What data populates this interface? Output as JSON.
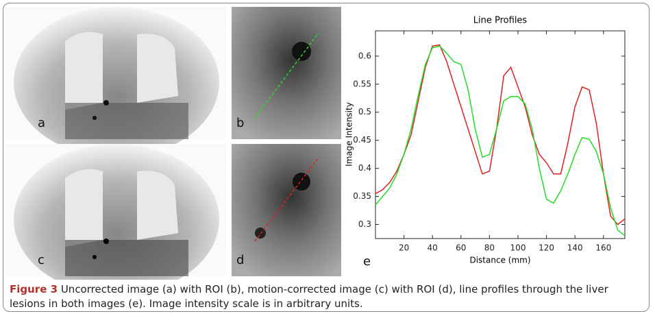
{
  "figure": {
    "panel_labels": [
      "a",
      "b",
      "c",
      "d",
      "e"
    ],
    "caption_label": "Figure 3",
    "caption_text": "Uncorrected image (a) with ROI (b), motion-corrected image (c) with ROI (d), line profiles through the liver lesions in both images (e). Image intensity scale is in arbitrary units."
  },
  "chart_data": {
    "type": "line",
    "title": "Line Profiles",
    "x_label": "Distance (mm)",
    "y_label": "Image Intensity",
    "x": [
      0,
      5,
      10,
      15,
      20,
      25,
      30,
      35,
      40,
      45,
      50,
      55,
      60,
      65,
      70,
      75,
      80,
      85,
      90,
      95,
      100,
      105,
      110,
      115,
      120,
      125,
      130,
      135,
      140,
      145,
      150,
      155,
      160,
      165,
      170,
      175
    ],
    "series": [
      {
        "color": "#e02020",
        "values": [
          0.355,
          0.362,
          0.375,
          0.395,
          0.425,
          0.46,
          0.52,
          0.58,
          0.618,
          0.62,
          0.59,
          0.55,
          0.51,
          0.47,
          0.43,
          0.39,
          0.395,
          0.47,
          0.565,
          0.58,
          0.545,
          0.51,
          0.46,
          0.425,
          0.41,
          0.39,
          0.39,
          0.445,
          0.51,
          0.545,
          0.54,
          0.48,
          0.39,
          0.315,
          0.3,
          0.31
        ]
      },
      {
        "color": "#22dd22",
        "values": [
          0.335,
          0.35,
          0.365,
          0.39,
          0.425,
          0.47,
          0.53,
          0.585,
          0.615,
          0.618,
          0.605,
          0.59,
          0.585,
          0.54,
          0.47,
          0.42,
          0.425,
          0.47,
          0.52,
          0.528,
          0.528,
          0.515,
          0.47,
          0.4,
          0.345,
          0.338,
          0.36,
          0.39,
          0.425,
          0.455,
          0.452,
          0.43,
          0.39,
          0.33,
          0.29,
          0.28
        ]
      }
    ],
    "xlim": [
      0,
      175
    ],
    "xticks": [
      20,
      40,
      60,
      80,
      100,
      120,
      140,
      160
    ],
    "ylim": [
      0.275,
      0.645
    ],
    "yticks": [
      0.3,
      0.35,
      0.4,
      0.45,
      0.5,
      0.55,
      0.6
    ]
  }
}
